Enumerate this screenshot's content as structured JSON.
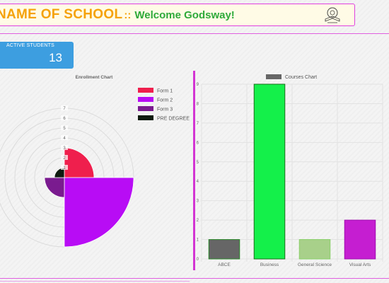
{
  "header": {
    "school_name": "NAME OF SCHOOL",
    "separator": "::",
    "welcome": "Welcome Godsway!",
    "logo_icon": "school-crest-logo"
  },
  "stat_card": {
    "label": "ACTIVE STUDENTS",
    "value": "13",
    "color": "#3d9ee0"
  },
  "chart_data": [
    {
      "type": "polarArea",
      "title": "Enrollment Chart",
      "legend_position": "top-right",
      "labels": [
        "Form 1",
        "Form 2",
        "Form 3",
        "PRE DEGREE"
      ],
      "values": [
        3,
        7,
        2,
        1
      ],
      "colors": [
        "#ef1f4d",
        "#b80cf5",
        "#7a1b8f",
        "#0e1a0e"
      ],
      "r_ticks": [
        "1",
        "2",
        "3",
        "4",
        "5",
        "6",
        "7"
      ],
      "r_max": 7
    },
    {
      "type": "bar",
      "title": "Courses Chart",
      "legend_position": "top",
      "categories": [
        "ABCE",
        "Business",
        "General Science",
        "Visual Arts"
      ],
      "values": [
        1,
        9,
        1,
        2
      ],
      "colors": [
        "#666666",
        "#14f04a",
        "#a8d08a",
        "#c51ed1"
      ],
      "border_colors": [
        "#2a8a2a",
        "#1a6e1a",
        "#8ad06a",
        "#a010b0"
      ],
      "ylim": [
        0,
        9
      ],
      "y_ticks": [
        "0",
        "1",
        "2",
        "3",
        "4",
        "5",
        "6",
        "7",
        "8",
        "9"
      ],
      "grid": true
    }
  ]
}
